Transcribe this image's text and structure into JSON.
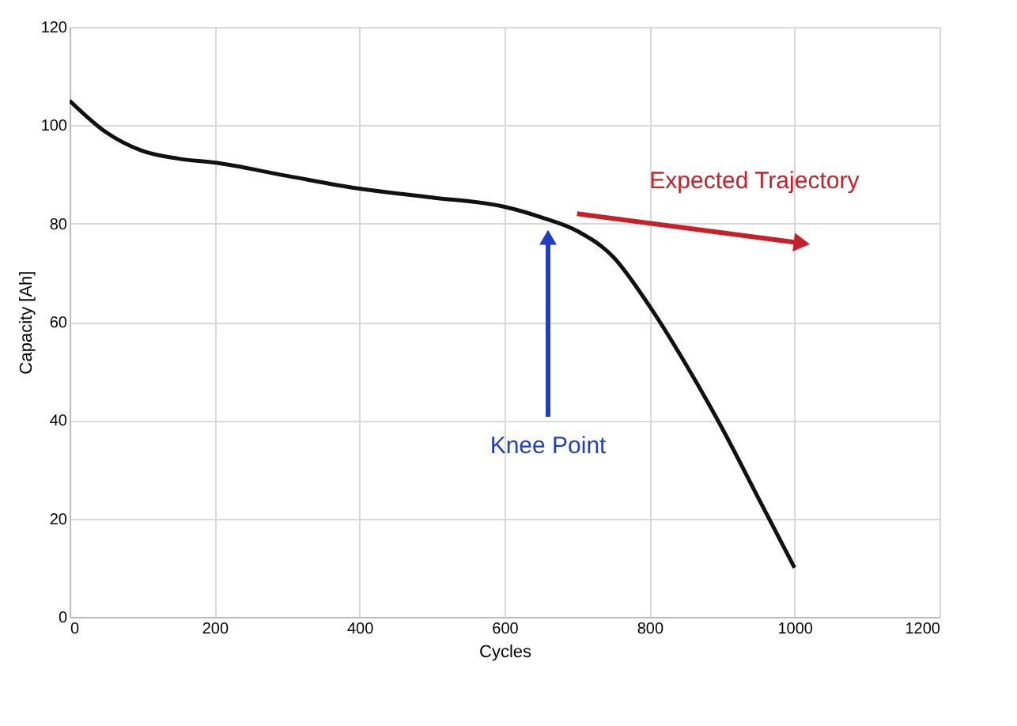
{
  "chart_data": {
    "type": "line",
    "xlabel": "Cycles",
    "ylabel": "Capacity [Ah]",
    "xlim": [
      0,
      1200
    ],
    "xticks": [
      0,
      200,
      400,
      600,
      800,
      1000,
      1200
    ],
    "ylim": [
      0,
      120
    ],
    "yticks": [
      0,
      20,
      40,
      60,
      80,
      100,
      120
    ],
    "grid": true,
    "series": [
      {
        "color": "#111111",
        "x": [
          0,
          50,
          100,
          150,
          200,
          300,
          400,
          500,
          600,
          650,
          700,
          750,
          800,
          850,
          900,
          950,
          1000
        ],
        "values": [
          105,
          98.6,
          94.8,
          93.2,
          92.4,
          89.7,
          87.1,
          85.3,
          83.4,
          81.3,
          78.5,
          73.2,
          63.2,
          51.4,
          38.4,
          24.2,
          10
        ]
      },
      {
        "color": "#c8202a",
        "x": [
          700,
          1010
        ],
        "values": [
          82,
          76
        ]
      }
    ],
    "annotations": [
      "Knee Point",
      {
        "text": "Expected Trajectory",
        "x": 1010,
        "y": 76
      }
    ]
  }
}
